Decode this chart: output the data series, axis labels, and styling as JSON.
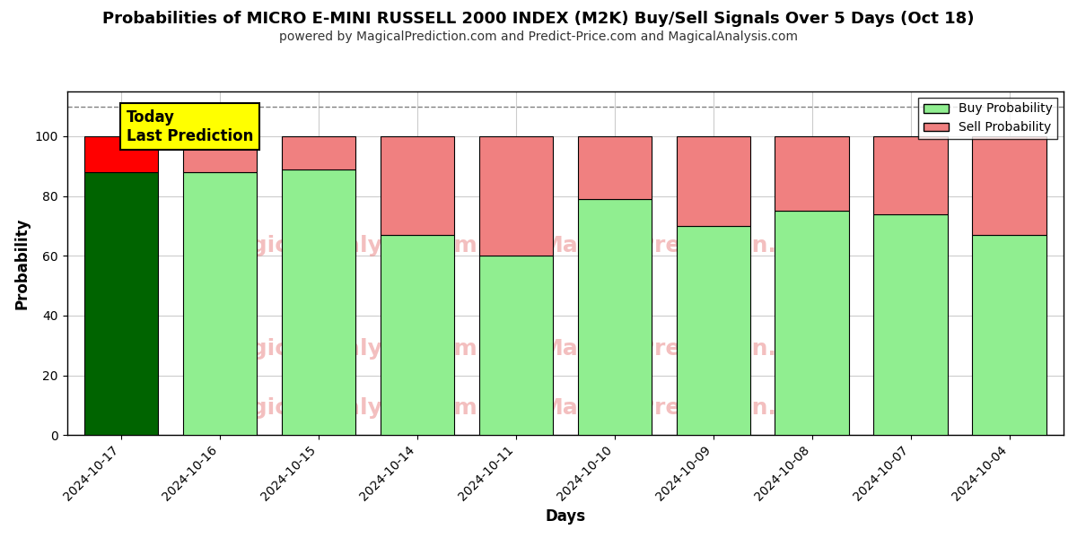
{
  "title": "Probabilities of MICRO E-MINI RUSSELL 2000 INDEX (M2K) Buy/Sell Signals Over 5 Days (Oct 18)",
  "subtitle": "powered by MagicalPrediction.com and Predict-Price.com and MagicalAnalysis.com",
  "xlabel": "Days",
  "ylabel": "Probability",
  "categories": [
    "2024-10-17",
    "2024-10-16",
    "2024-10-15",
    "2024-10-14",
    "2024-10-11",
    "2024-10-10",
    "2024-10-09",
    "2024-10-08",
    "2024-10-07",
    "2024-10-04"
  ],
  "buy_probs": [
    88,
    88,
    89,
    67,
    60,
    79,
    70,
    75,
    74,
    67
  ],
  "sell_probs": [
    12,
    12,
    11,
    33,
    40,
    21,
    30,
    25,
    26,
    33
  ],
  "today_buy_color": "#006400",
  "today_sell_color": "#FF0000",
  "buy_color": "#90EE90",
  "sell_color": "#F08080",
  "today_annotation": "Today\nLast Prediction",
  "annotation_bg_color": "#FFFF00",
  "dashed_line_y": 110,
  "ylim": [
    0,
    115
  ],
  "yticks": [
    0,
    20,
    40,
    60,
    80,
    100
  ],
  "background_color": "#ffffff",
  "grid_color": "#cccccc",
  "legend_buy_label": "Buy Probability",
  "legend_sell_label": "Sell Probability",
  "title_fontsize": 13,
  "subtitle_fontsize": 10
}
